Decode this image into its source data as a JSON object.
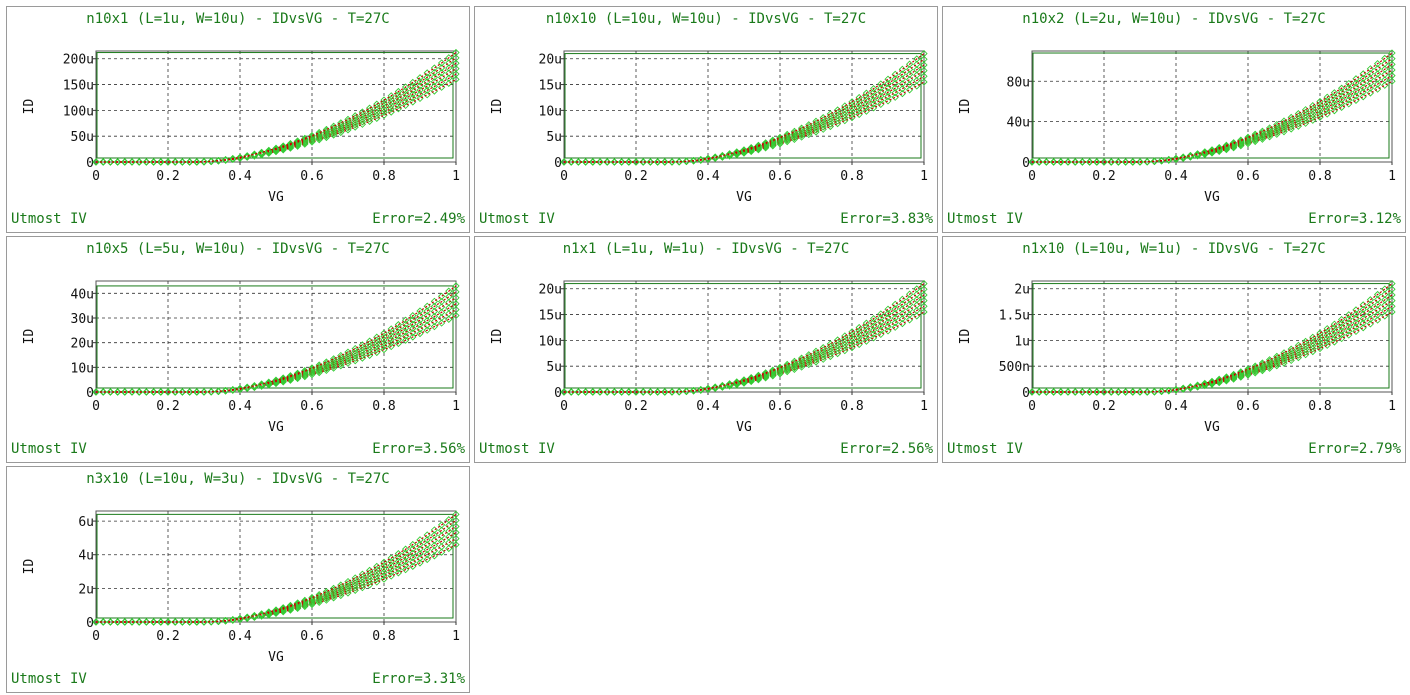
{
  "colors": {
    "frame": "#1a7a1a",
    "simulated": "#cc0000",
    "measured": "#33cc33",
    "text_accent": "#1a7a1a"
  },
  "chart_data": [
    {
      "type": "scatter",
      "title": "n10x1 (L=1u, W=10u) - IDvsVG - T=27C",
      "xlabel": "VG",
      "ylabel": "ID",
      "xlim": [
        0,
        1
      ],
      "ylim": [
        0,
        215
      ],
      "xticks": [
        "0",
        "0.2",
        "0.4",
        "0.6",
        "0.8",
        "1"
      ],
      "yticks": [
        {
          "v": 0,
          "l": "0"
        },
        {
          "v": 50,
          "l": "50u"
        },
        {
          "v": 100,
          "l": "100u"
        },
        {
          "v": 150,
          "l": "150u"
        },
        {
          "v": 200,
          "l": "200u"
        }
      ],
      "vth": 0.28,
      "ymax_low": 160,
      "ymax_high": 212,
      "grid": true,
      "model": "Utmost IV",
      "error": "Error=2.49%"
    },
    {
      "type": "scatter",
      "title": "n10x10 (L=10u, W=10u) - IDvsVG - T=27C",
      "xlabel": "VG",
      "ylabel": "ID",
      "xlim": [
        0,
        1
      ],
      "ylim": [
        0,
        21.5
      ],
      "xticks": [
        "0",
        "0.2",
        "0.4",
        "0.6",
        "0.8",
        "1"
      ],
      "yticks": [
        {
          "v": 0,
          "l": "0"
        },
        {
          "v": 5,
          "l": "5u"
        },
        {
          "v": 10,
          "l": "10u"
        },
        {
          "v": 15,
          "l": "15u"
        },
        {
          "v": 20,
          "l": "20u"
        }
      ],
      "vth": 0.3,
      "ymax_low": 15.5,
      "ymax_high": 21,
      "grid": true,
      "model": "Utmost IV",
      "error": "Error=3.83%"
    },
    {
      "type": "scatter",
      "title": "n10x2 (L=2u, W=10u) - IDvsVG - T=27C",
      "xlabel": "VG",
      "ylabel": "ID",
      "xlim": [
        0,
        1
      ],
      "ylim": [
        0,
        110
      ],
      "xticks": [
        "0",
        "0.2",
        "0.4",
        "0.6",
        "0.8",
        "1"
      ],
      "yticks": [
        {
          "v": 0,
          "l": "0"
        },
        {
          "v": 40,
          "l": "40u"
        },
        {
          "v": 80,
          "l": "80u"
        }
      ],
      "vth": 0.3,
      "ymax_low": 80,
      "ymax_high": 108,
      "grid": true,
      "model": "Utmost IV",
      "error": "Error=3.12%"
    },
    {
      "type": "scatter",
      "title": "n10x5 (L=5u, W=10u) - IDvsVG - T=27C",
      "xlabel": "VG",
      "ylabel": "ID",
      "xlim": [
        0,
        1
      ],
      "ylim": [
        0,
        45
      ],
      "xticks": [
        "0",
        "0.2",
        "0.4",
        "0.6",
        "0.8",
        "1"
      ],
      "yticks": [
        {
          "v": 0,
          "l": "0"
        },
        {
          "v": 10,
          "l": "10u"
        },
        {
          "v": 20,
          "l": "20u"
        },
        {
          "v": 30,
          "l": "30u"
        },
        {
          "v": 40,
          "l": "40u"
        }
      ],
      "vth": 0.3,
      "ymax_low": 31,
      "ymax_high": 43,
      "grid": true,
      "model": "Utmost IV",
      "error": "Error=3.56%"
    },
    {
      "type": "scatter",
      "title": "n1x1 (L=1u, W=1u) - IDvsVG - T=27C",
      "xlabel": "VG",
      "ylabel": "ID",
      "xlim": [
        0,
        1
      ],
      "ylim": [
        0,
        21.5
      ],
      "xticks": [
        "0",
        "0.2",
        "0.4",
        "0.6",
        "0.8",
        "1"
      ],
      "yticks": [
        {
          "v": 0,
          "l": "0"
        },
        {
          "v": 5,
          "l": "5u"
        },
        {
          "v": 10,
          "l": "10u"
        },
        {
          "v": 15,
          "l": "15u"
        },
        {
          "v": 20,
          "l": "20u"
        }
      ],
      "vth": 0.3,
      "ymax_low": 15.5,
      "ymax_high": 21,
      "grid": true,
      "model": "Utmost IV",
      "error": "Error=2.56%"
    },
    {
      "type": "scatter",
      "title": "n1x10 (L=10u, W=1u) - IDvsVG - T=27C",
      "xlabel": "VG",
      "ylabel": "ID",
      "xlim": [
        0,
        1
      ],
      "ylim": [
        0,
        2.15
      ],
      "xticks": [
        "0",
        "0.2",
        "0.4",
        "0.6",
        "0.8",
        "1"
      ],
      "yticks": [
        {
          "v": 0,
          "l": "0"
        },
        {
          "v": 0.5,
          "l": "500n"
        },
        {
          "v": 1,
          "l": "1u"
        },
        {
          "v": 1.5,
          "l": "1.5u"
        },
        {
          "v": 2,
          "l": "2u"
        }
      ],
      "vth": 0.32,
      "ymax_low": 1.55,
      "ymax_high": 2.1,
      "grid": true,
      "model": "Utmost IV",
      "error": "Error=2.79%"
    },
    {
      "type": "scatter",
      "title": "n3x10 (L=10u, W=3u) - IDvsVG - T=27C",
      "xlabel": "VG",
      "ylabel": "ID",
      "xlim": [
        0,
        1
      ],
      "ylim": [
        0,
        6.6
      ],
      "xticks": [
        "0",
        "0.2",
        "0.4",
        "0.6",
        "0.8",
        "1"
      ],
      "yticks": [
        {
          "v": 0,
          "l": "0"
        },
        {
          "v": 2,
          "l": "2u"
        },
        {
          "v": 4,
          "l": "4u"
        },
        {
          "v": 6,
          "l": "6u"
        }
      ],
      "vth": 0.3,
      "ymax_low": 4.6,
      "ymax_high": 6.4,
      "grid": true,
      "model": "Utmost IV",
      "error": "Error=3.31%"
    }
  ]
}
